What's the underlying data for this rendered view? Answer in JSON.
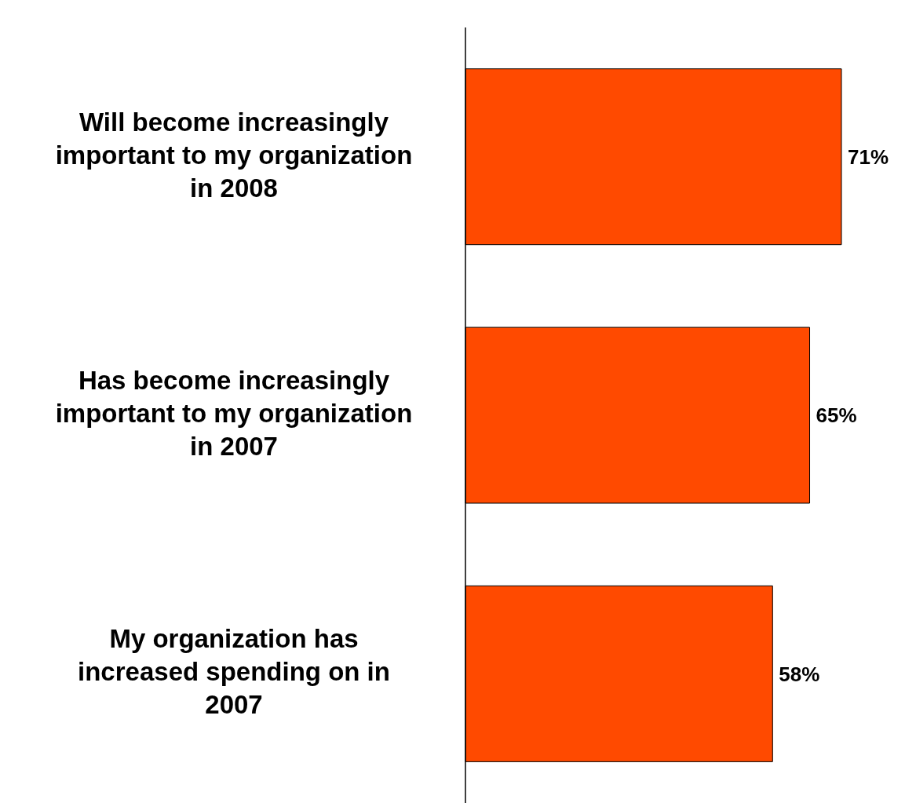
{
  "chart_data": {
    "type": "bar",
    "orientation": "horizontal",
    "categories": [
      "Will become increasingly important to my organization in 2008",
      "Has become increasingly important to my organization in 2007",
      "My organization has increased spending on in 2007"
    ],
    "values": [
      71,
      65,
      58
    ],
    "color": "#ff4a00",
    "value_labels": [
      "71%",
      "65%",
      "58%"
    ],
    "grid": false,
    "legend": false
  }
}
